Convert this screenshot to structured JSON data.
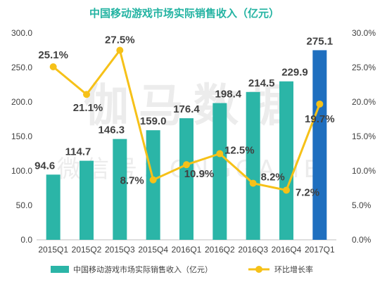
{
  "chart_data": {
    "type": "bar",
    "title": "中国移动游戏市场实际销售收入（亿元）",
    "categories": [
      "2015Q1",
      "2015Q2",
      "2015Q3",
      "2015Q4",
      "2016Q1",
      "2016Q2",
      "2016Q3",
      "2016Q4",
      "2017Q1"
    ],
    "series": [
      {
        "name": "中国移动游戏市场实际销售收入（亿元）",
        "type": "bar",
        "axis": "left",
        "values": [
          94.6,
          114.7,
          146.3,
          159.0,
          176.4,
          198.4,
          214.5,
          229.9,
          275.1
        ],
        "labels": [
          "94.6",
          "114.7",
          "146.3",
          "159.0",
          "176.4",
          "198.4",
          "214.5",
          "229.9",
          "275.1"
        ],
        "color": "#2BB5A7",
        "highlight_color": "#1F6FBF",
        "highlight_index": 8
      },
      {
        "name": "环比增长率",
        "type": "line",
        "axis": "right",
        "values": [
          25.1,
          21.1,
          27.5,
          8.7,
          10.9,
          12.5,
          8.2,
          7.2,
          19.7
        ],
        "labels": [
          "25.1%",
          "21.1%",
          "27.5%",
          "8.7%",
          "10.9%",
          "12.5%",
          "8.2%",
          "7.2%",
          "19.7%"
        ],
        "color": "#F6C118"
      }
    ],
    "y_left": {
      "range": [
        0,
        300
      ],
      "ticks": [
        "0.0",
        "50.0",
        "100.0",
        "150.0",
        "200.0",
        "250.0",
        "300.0"
      ]
    },
    "y_right": {
      "range": [
        0,
        30
      ],
      "ticks": [
        "0.0%",
        "5.0%",
        "10.0%",
        "15.0%",
        "20.0%",
        "25.0%",
        "30.0%"
      ]
    },
    "grid": false,
    "legend": "bottom",
    "title_color": "#23B3A2",
    "watermark": {
      "main": "伽马数据",
      "sub": "微信号：CNGGAME"
    }
  }
}
